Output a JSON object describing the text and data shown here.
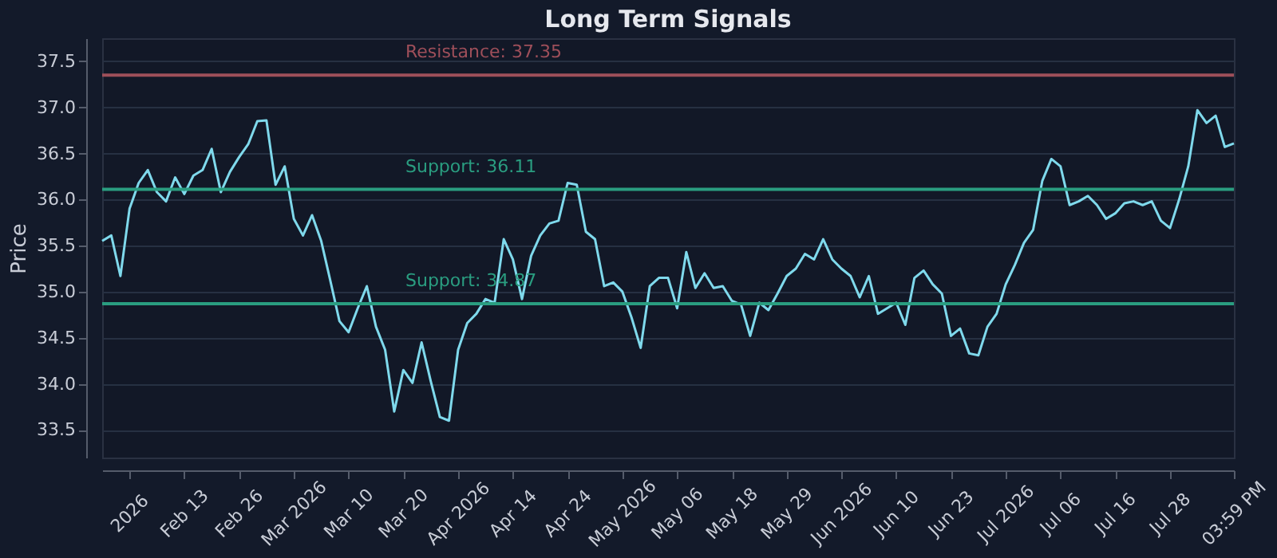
{
  "chart_data": {
    "type": "line",
    "title": "Long Term Signals",
    "ylabel": "Price",
    "categories": [
      null,
      null,
      null,
      "2026",
      null,
      null,
      null,
      null,
      null,
      "Feb 13",
      null,
      null,
      null,
      null,
      null,
      "Feb 26",
      null,
      null,
      null,
      null,
      null,
      "Mar 2026",
      null,
      null,
      null,
      null,
      null,
      "Mar 10",
      null,
      null,
      null,
      null,
      null,
      "Mar 20",
      null,
      null,
      null,
      null,
      null,
      "Apr 2026",
      null,
      null,
      null,
      null,
      null,
      "Apr 14",
      null,
      null,
      null,
      null,
      null,
      "Apr 24",
      null,
      null,
      null,
      null,
      null,
      "May 2026",
      null,
      null,
      null,
      null,
      null,
      "May 06",
      null,
      null,
      null,
      null,
      null,
      "May 18",
      null,
      null,
      null,
      null,
      null,
      "May 29",
      null,
      null,
      null,
      null,
      null,
      "Jun 2026",
      null,
      null,
      null,
      null,
      null,
      "Jun 10",
      null,
      null,
      null,
      null,
      null,
      "Jun 23",
      null,
      null,
      null,
      null,
      null,
      "Jul 2026",
      null,
      null,
      null,
      null,
      null,
      "Jul 06",
      null,
      null,
      null,
      null,
      null,
      "Jul 16",
      null,
      null,
      null,
      null,
      null,
      "Jul 28",
      null,
      null,
      null,
      null,
      null,
      null,
      "03:59 PM"
    ],
    "series": [
      {
        "color": "#7fd9ec",
        "values": [
          35.55,
          35.61,
          35.17,
          35.9,
          36.18,
          36.32,
          36.08,
          35.98,
          36.24,
          36.06,
          36.26,
          36.32,
          36.55,
          36.08,
          36.3,
          36.46,
          36.6,
          36.85,
          36.86,
          36.16,
          36.36,
          35.79,
          35.61,
          35.83,
          35.55,
          35.12,
          34.68,
          34.56,
          34.82,
          35.06,
          34.62,
          34.37,
          33.7,
          34.15,
          34.01,
          34.45,
          34.03,
          33.64,
          33.6,
          34.37,
          34.66,
          34.76,
          34.92,
          34.88,
          35.57,
          35.35,
          34.92,
          35.39,
          35.61,
          35.74,
          35.77,
          36.18,
          36.16,
          35.65,
          35.57,
          35.06,
          35.1,
          35.0,
          34.72,
          34.39,
          35.06,
          35.15,
          35.15,
          34.82,
          35.43,
          35.04,
          35.2,
          35.04,
          35.06,
          34.9,
          34.86,
          34.52,
          34.88,
          34.8,
          34.98,
          35.17,
          35.25,
          35.41,
          35.35,
          35.57,
          35.35,
          35.25,
          35.17,
          34.94,
          35.17,
          34.76,
          34.82,
          34.88,
          34.64,
          35.15,
          35.23,
          35.08,
          34.98,
          34.52,
          34.6,
          34.33,
          34.31,
          34.62,
          34.76,
          35.08,
          35.29,
          35.53,
          35.67,
          36.2,
          36.44,
          36.36,
          35.94,
          35.98,
          36.04,
          35.94,
          35.79,
          35.85,
          35.96,
          35.98,
          35.94,
          35.98,
          35.77,
          35.69,
          36.0,
          36.36,
          36.97,
          36.83,
          36.91,
          36.57,
          36.61
        ]
      }
    ],
    "ylim": [
      33.2,
      37.75
    ],
    "yticks": [
      {
        "value": 33.5,
        "label": "33.5"
      },
      {
        "value": 34.0,
        "label": "34.0"
      },
      {
        "value": 34.5,
        "label": "34.5"
      },
      {
        "value": 35.0,
        "label": "35.0"
      },
      {
        "value": 35.5,
        "label": "35.5"
      },
      {
        "value": 36.0,
        "label": "36.0"
      },
      {
        "value": 36.5,
        "label": "36.5"
      },
      {
        "value": 37.0,
        "label": "37.0"
      },
      {
        "value": 37.5,
        "label": "37.5"
      }
    ],
    "ref_lines": [
      {
        "axis": "y",
        "value": 37.35,
        "label": "Resistance: 37.35",
        "color": "#9e4f5a"
      },
      {
        "axis": "y",
        "value": 36.11,
        "label": "Support: 36.11",
        "color": "#2a9d80"
      },
      {
        "axis": "y",
        "value": 34.87,
        "label": "Support: 34.87",
        "color": "#2a9d80"
      }
    ],
    "grid": "y",
    "marker": "none",
    "line_style": "solid"
  }
}
